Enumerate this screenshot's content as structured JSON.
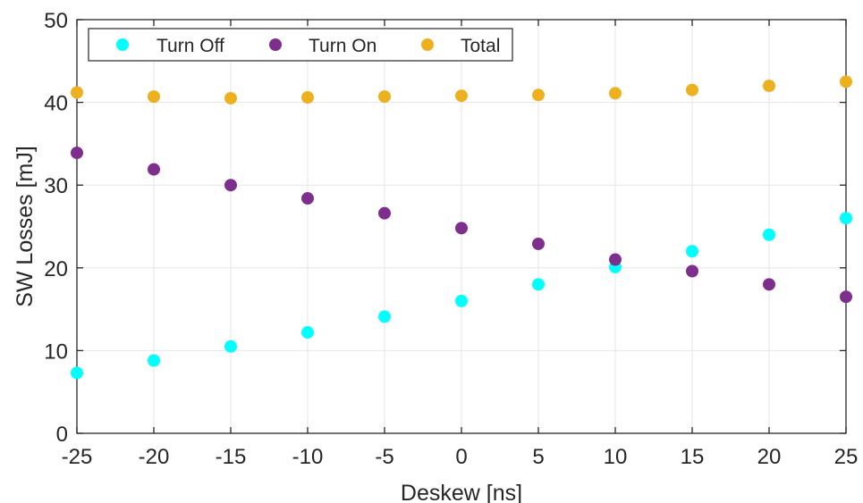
{
  "chart_data": {
    "type": "scatter",
    "title": "",
    "xlabel": "Deskew [ns]",
    "ylabel": "SW Losses [mJ]",
    "xlim": [
      -25,
      25
    ],
    "ylim": [
      0,
      50
    ],
    "xticks": [
      -25,
      -20,
      -15,
      -10,
      -5,
      0,
      5,
      10,
      15,
      20,
      25
    ],
    "yticks": [
      0,
      10,
      20,
      30,
      40,
      50
    ],
    "xtick_labels": [
      "-25",
      "-20",
      "-15",
      "-10",
      "-5",
      "0",
      "5",
      "10",
      "15",
      "20",
      "25"
    ],
    "ytick_labels": [
      "0",
      "10",
      "20",
      "30",
      "40",
      "50"
    ],
    "grid": true,
    "legend_position": "top-left",
    "x": [
      -25,
      -20,
      -15,
      -10,
      -5,
      0,
      5,
      10,
      15,
      20,
      25
    ],
    "series": [
      {
        "name": "Turn Off",
        "color": "#00ffff",
        "values": [
          7.3,
          8.8,
          10.5,
          12.2,
          14.1,
          16.0,
          18.0,
          20.1,
          22.0,
          24.0,
          26.0
        ]
      },
      {
        "name": "Turn On",
        "color": "#7e2f8e",
        "values": [
          33.9,
          31.9,
          30.0,
          28.4,
          26.6,
          24.8,
          22.9,
          21.0,
          19.6,
          18.0,
          16.5
        ]
      },
      {
        "name": "Total",
        "color": "#edb120",
        "values": [
          41.2,
          40.7,
          40.5,
          40.6,
          40.7,
          40.8,
          40.9,
          41.1,
          41.5,
          42.0,
          42.5
        ]
      }
    ]
  }
}
